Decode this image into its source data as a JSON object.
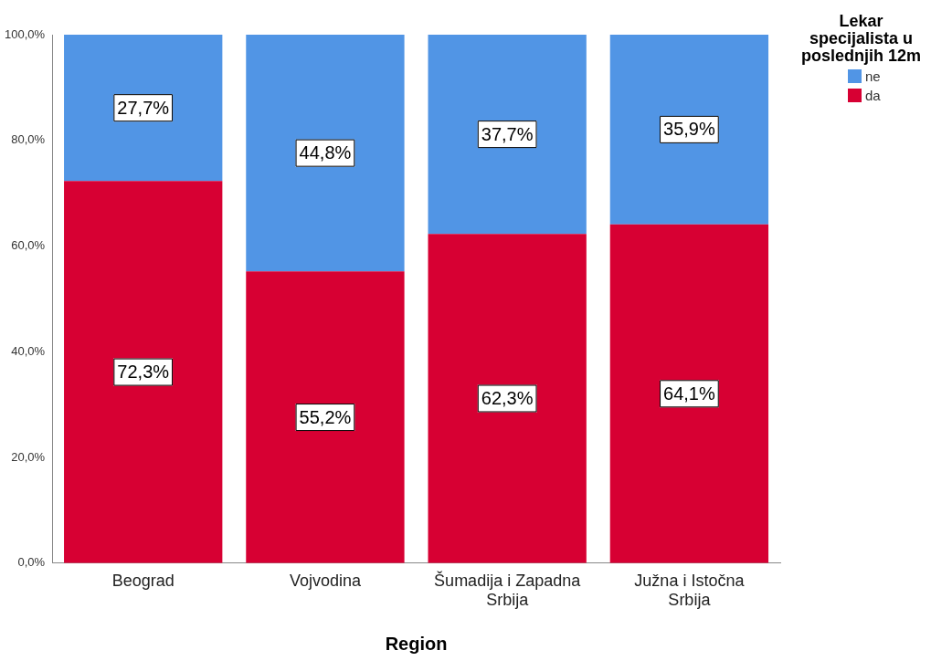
{
  "chart_data": {
    "type": "bar",
    "stacked": true,
    "xlabel": "Region",
    "legend_title": "Lekar specijalista u poslednjih 12m",
    "legend": "right",
    "grid": false,
    "data_labels": true,
    "categories": [
      "Beograd",
      "Vojvodina",
      "Šumadija i Zapadna Srbija",
      "Južna i Istočna Srbija"
    ],
    "ylim": [
      0,
      100
    ],
    "yticks": [
      {
        "value": 0,
        "label": "0,0%"
      },
      {
        "value": 20,
        "label": "20,0%"
      },
      {
        "value": 40,
        "label": "40,0%"
      },
      {
        "value": 60,
        "label": "60,0%"
      },
      {
        "value": 80,
        "label": "80,0%"
      },
      {
        "value": 100,
        "label": "100,0%"
      }
    ],
    "series": [
      {
        "name": "da",
        "color": "#d70033",
        "values": [
          72.3,
          55.2,
          62.3,
          64.1
        ],
        "value_labels": [
          "72,3%",
          "55,2%",
          "62,3%",
          "64,1%"
        ]
      },
      {
        "name": "ne",
        "color": "#5195e5",
        "values": [
          27.7,
          44.8,
          37.7,
          35.9
        ],
        "value_labels": [
          "27,7%",
          "44,8%",
          "37,7%",
          "35,9%"
        ]
      }
    ]
  }
}
